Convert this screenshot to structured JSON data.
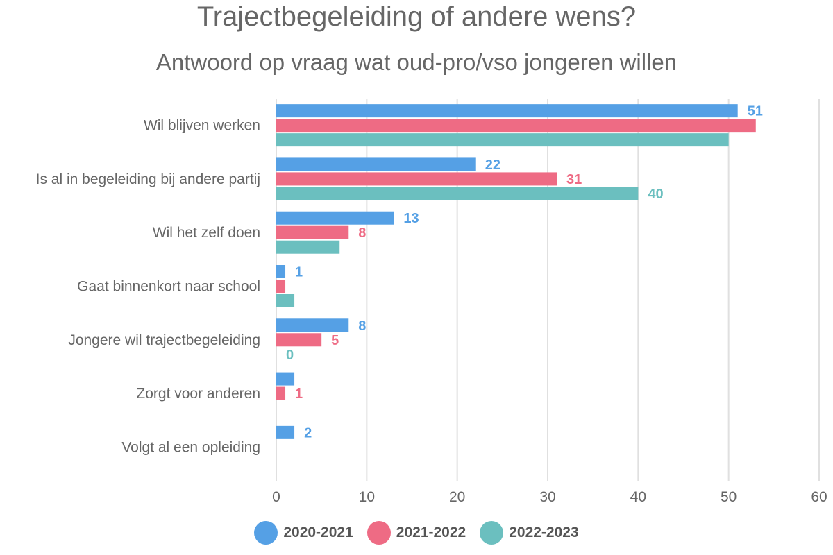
{
  "chart_data": {
    "type": "bar",
    "orientation": "horizontal",
    "title": "Trajectbegeleiding of andere wens?",
    "subtitle": "Antwoord op vraag wat oud-pro/vso jongeren willen",
    "categories": [
      "Wil blijven werken",
      "Is al in begeleiding bij andere partij",
      "Wil het zelf doen",
      "Gaat binnenkort naar school",
      "Jongere wil trajectbegeleiding",
      "Zorgt voor anderen",
      "Volgt al een opleiding"
    ],
    "series": [
      {
        "name": "2020-2021",
        "color": "#55a0e5",
        "values": [
          51,
          22,
          13,
          1,
          8,
          2,
          2
        ],
        "data_labels": [
          "51",
          "22",
          "13",
          "1",
          "8",
          null,
          "2"
        ]
      },
      {
        "name": "2021-2022",
        "color": "#ee6b84",
        "values": [
          53,
          31,
          8,
          1,
          5,
          1,
          null
        ],
        "data_labels": [
          null,
          "31",
          "8",
          null,
          "5",
          "1",
          null
        ]
      },
      {
        "name": "2022-2023",
        "color": "#6bbfbf",
        "values": [
          50,
          40,
          7,
          2,
          0,
          null,
          null
        ],
        "data_labels": [
          null,
          "40",
          null,
          null,
          "0",
          null,
          null
        ]
      }
    ],
    "xlim": [
      0,
      60
    ],
    "xticks": [
      0,
      10,
      20,
      30,
      40,
      50,
      60
    ],
    "grid": true,
    "legend": "bottom-center"
  }
}
